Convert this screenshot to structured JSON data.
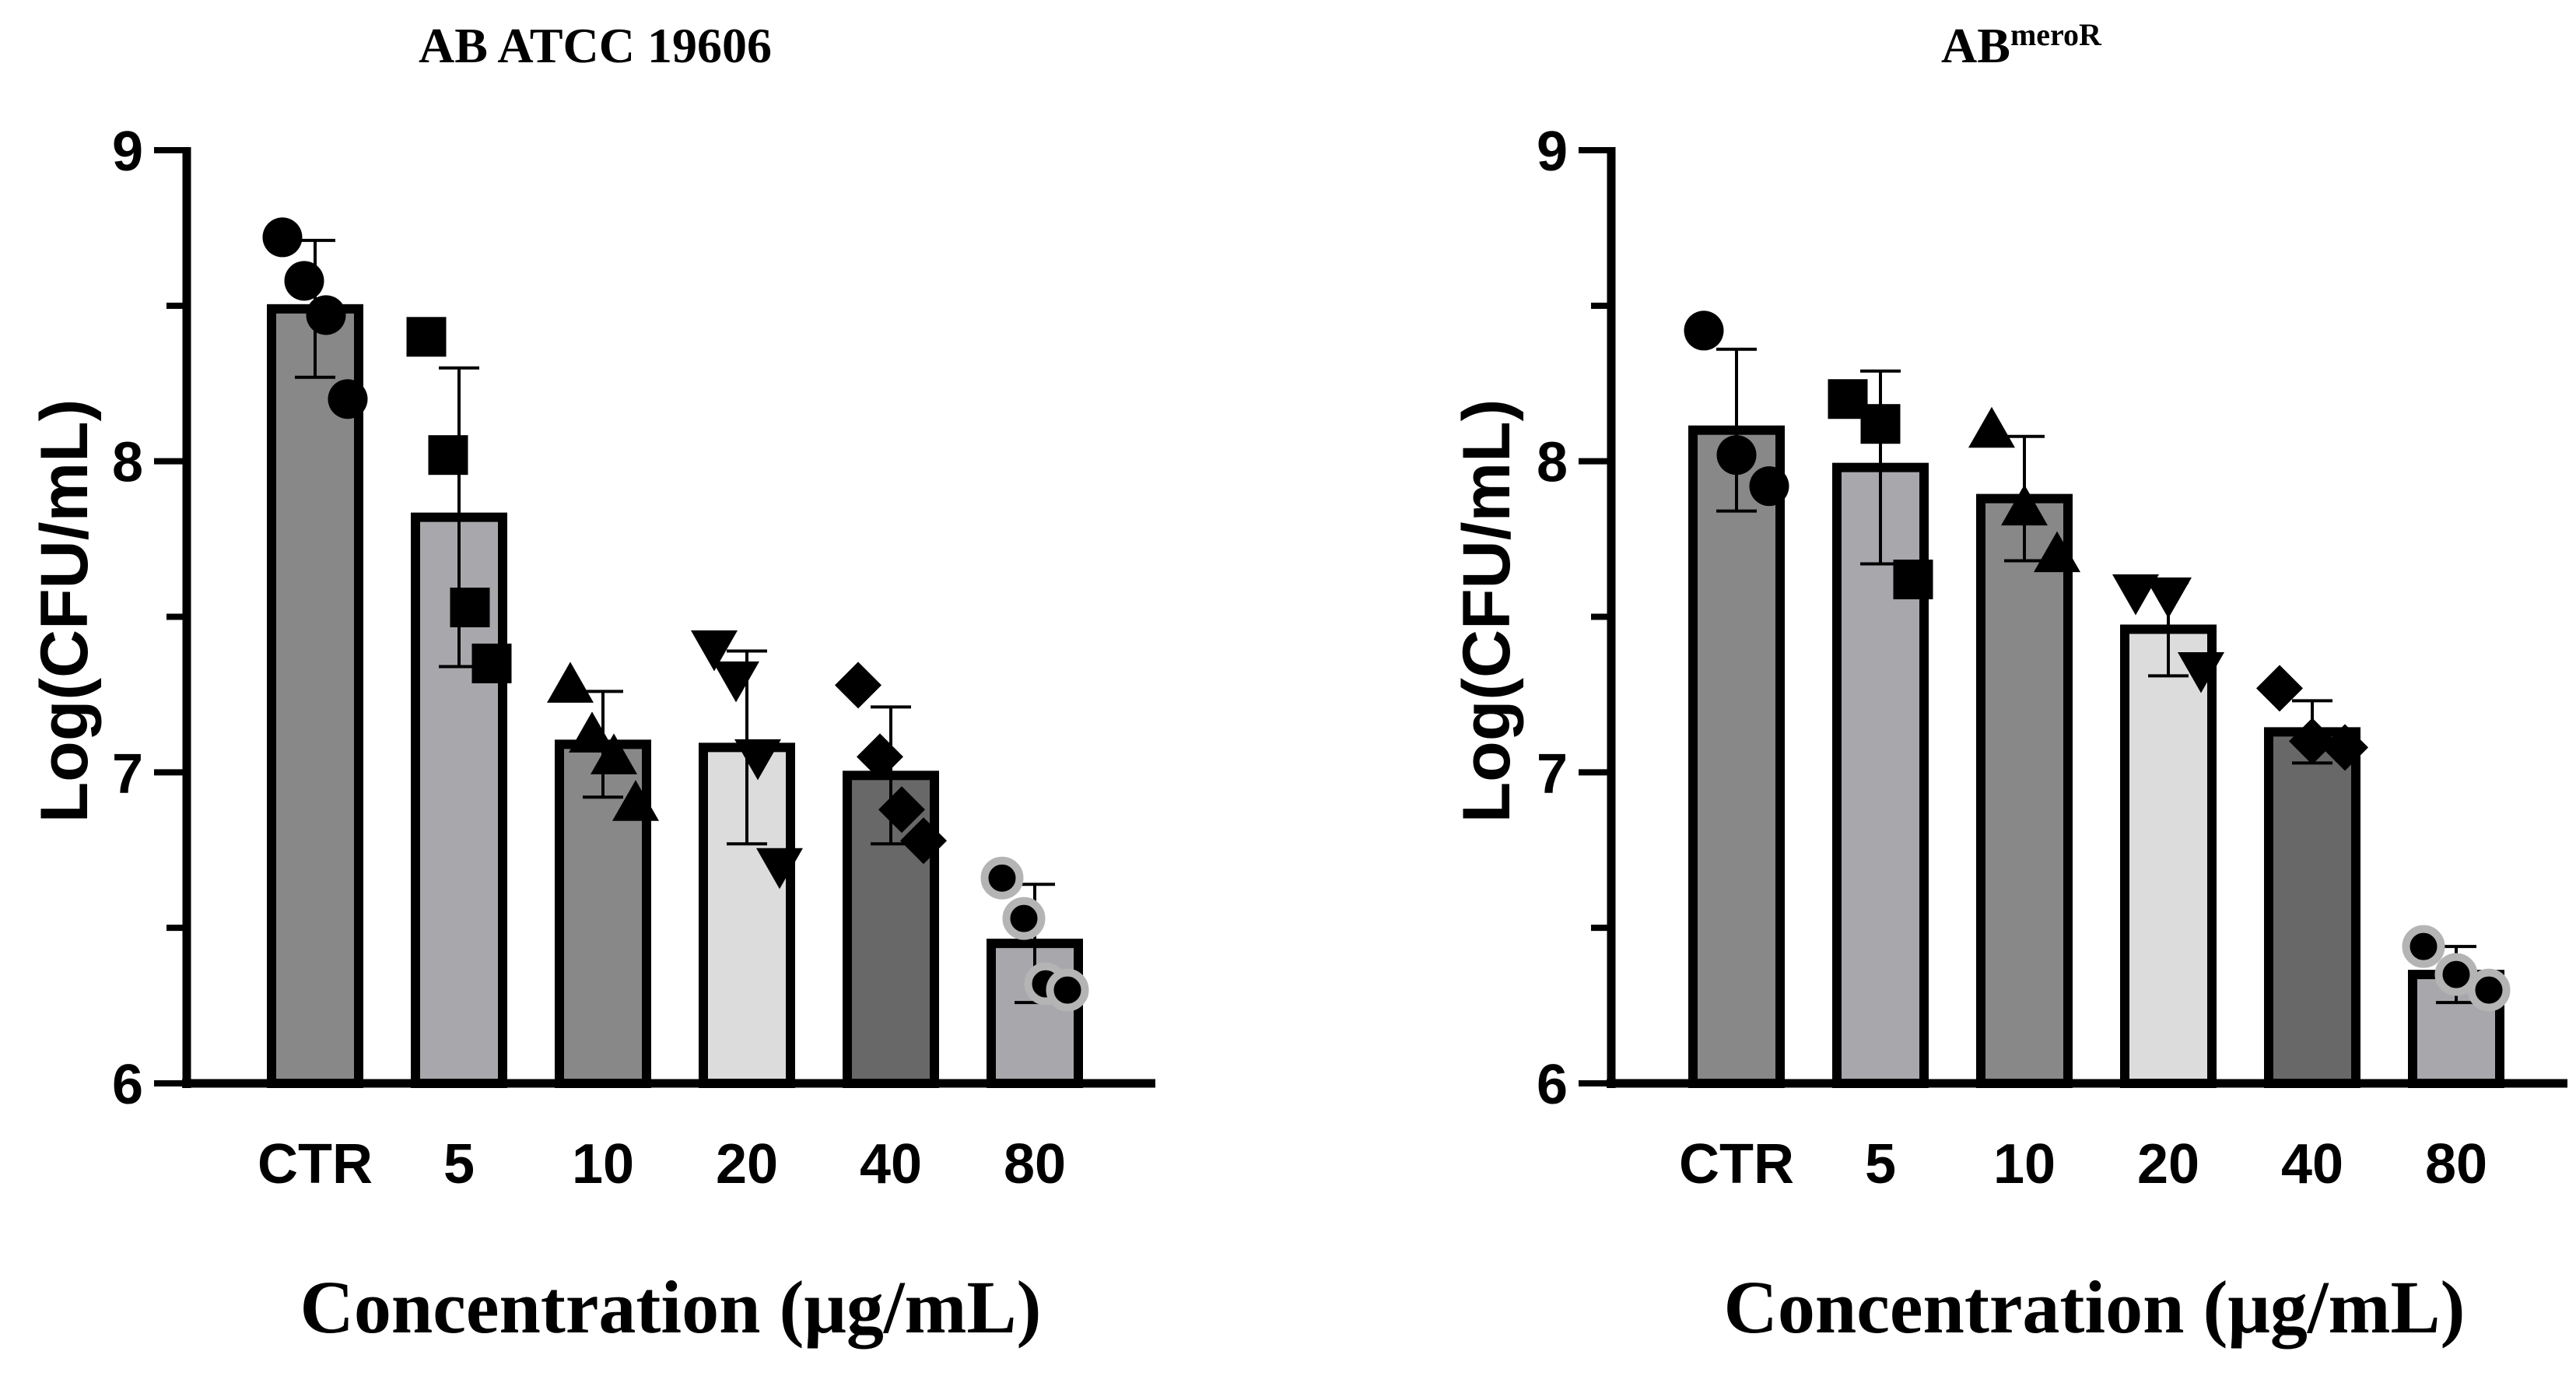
{
  "chart_data": [
    {
      "type": "bar",
      "title_main": "AB ATCC 19606",
      "title_sup": "",
      "xlabel": "Concentration (μg/mL)",
      "ylabel": "Log(CFU/mL)",
      "ylim": [
        6,
        9
      ],
      "yticks": [
        "6",
        "7",
        "8",
        "9"
      ],
      "categories": [
        "CTR",
        "5",
        "10",
        "20",
        "40",
        "80"
      ],
      "values": [
        8.49,
        7.82,
        7.09,
        7.08,
        6.99,
        6.45
      ],
      "errors": [
        0.22,
        0.48,
        0.17,
        0.31,
        0.22,
        0.19
      ],
      "bar_colors": [
        "#888888",
        "#a8a8ac",
        "#888888",
        "#dcdcdc",
        "#686868",
        "#a8a8ac"
      ],
      "markers": [
        "circle",
        "square",
        "triangle",
        "triangle-down",
        "diamond",
        "circle-ring"
      ],
      "points": [
        [
          8.72,
          8.58,
          8.47,
          8.2
        ],
        [
          8.4,
          8.02,
          7.53,
          7.35
        ],
        [
          7.28,
          7.12,
          7.05,
          6.9
        ],
        [
          7.4,
          7.3,
          7.05,
          6.7
        ],
        [
          7.28,
          7.05,
          6.88,
          6.78
        ],
        [
          6.66,
          6.53,
          6.32,
          6.3
        ]
      ]
    },
    {
      "type": "bar",
      "title_main": "AB",
      "title_sup": "meroR",
      "xlabel": "Concentration (μg/mL)",
      "ylabel": "Log(CFU/mL)",
      "ylim": [
        6,
        9
      ],
      "yticks": [
        "6",
        "7",
        "8",
        "9"
      ],
      "categories": [
        "CTR",
        "5",
        "10",
        "20",
        "40",
        "80"
      ],
      "values": [
        8.1,
        7.98,
        7.88,
        7.46,
        7.13,
        6.35
      ],
      "errors": [
        0.26,
        0.31,
        0.2,
        0.15,
        0.1,
        0.09
      ],
      "bar_colors": [
        "#888888",
        "#a8a8ac",
        "#888888",
        "#dcdcdc",
        "#686868",
        "#a8a8ac"
      ],
      "markers": [
        "circle",
        "square",
        "triangle",
        "triangle-down",
        "diamond",
        "circle-ring"
      ],
      "points": [
        [
          8.42,
          8.02,
          7.92
        ],
        [
          8.2,
          8.12,
          7.62
        ],
        [
          8.1,
          7.85,
          7.7
        ],
        [
          7.58,
          7.57,
          7.33
        ],
        [
          7.27,
          7.1,
          7.08
        ],
        [
          6.44,
          6.35,
          6.3
        ]
      ]
    }
  ]
}
